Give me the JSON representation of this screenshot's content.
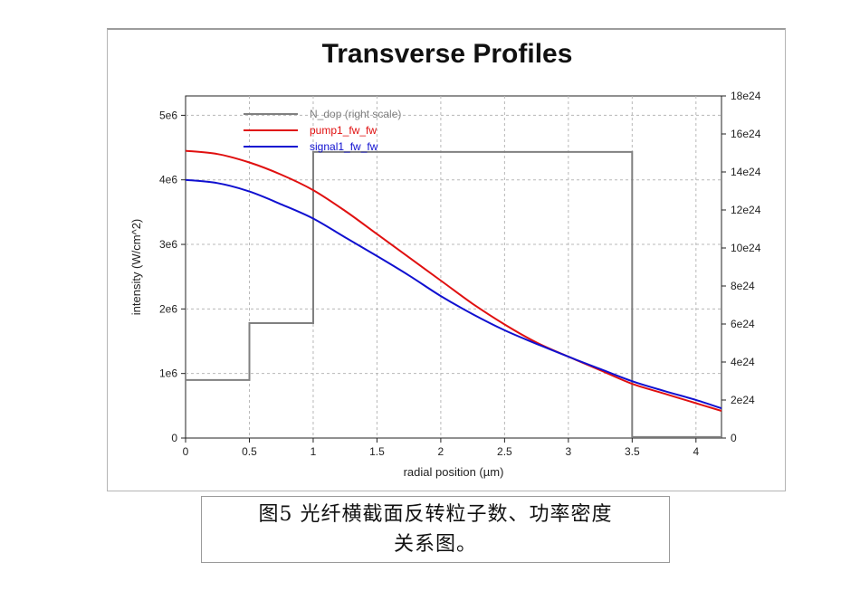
{
  "chart_data": {
    "type": "line",
    "title": "Transverse Profiles",
    "xlabel": "radial position (µm)",
    "ylabel": "intensity (W/cm^2)",
    "xlim": [
      0,
      4.2
    ],
    "ylim": [
      0,
      5300000
    ],
    "y2lim": [
      0,
      18000000000000000000000000
    ],
    "x_ticks": [
      0,
      0.5,
      1,
      1.5,
      2,
      2.5,
      3,
      3.5,
      4
    ],
    "x_tick_labels": [
      "0",
      "0.5",
      "1",
      "1.5",
      "2",
      "2.5",
      "3",
      "3.5",
      "4"
    ],
    "y_ticks": [
      0,
      1000000,
      2000000,
      3000000,
      4000000,
      5000000
    ],
    "y_tick_labels": [
      "0",
      "1e6",
      "2e6",
      "3e6",
      "4e6",
      "5e6"
    ],
    "y2_ticks": [
      0,
      2e+24,
      4e+24,
      6e+24,
      8e+24,
      1e+25,
      1.2e+25,
      1.4e+25,
      1.6e+25,
      1.8e+25
    ],
    "y2_tick_labels": [
      "0",
      "2e24",
      "4e24",
      "6e24",
      "8e24",
      "10e24",
      "12e24",
      "14e24",
      "16e24",
      "18e24"
    ],
    "grid": true,
    "legend_position": "top-left",
    "series": [
      {
        "name": "N_dop (right scale)",
        "axis": "right",
        "color": "#808080",
        "step": true,
        "x": [
          0,
          0.5,
          0.5,
          1.0,
          1.0,
          3.5,
          3.5,
          4.2
        ],
        "y": [
          3.05e+24,
          3.05e+24,
          6.05e+24,
          6.05e+24,
          1.505e+25,
          1.505e+25,
          5e+22,
          5e+22
        ]
      },
      {
        "name": "pump1_fw_fw",
        "axis": "left",
        "color": "#e01010",
        "x": [
          0,
          0.25,
          0.5,
          0.75,
          1.0,
          1.25,
          1.5,
          1.75,
          2.0,
          2.25,
          2.5,
          2.75,
          3.0,
          3.25,
          3.5,
          3.75,
          4.0,
          4.2
        ],
        "y": [
          4450000,
          4400000,
          4270000,
          4080000,
          3840000,
          3520000,
          3160000,
          2800000,
          2440000,
          2080000,
          1760000,
          1480000,
          1260000,
          1050000,
          840000,
          690000,
          540000,
          420000
        ]
      },
      {
        "name": "signal1_fw_fw",
        "axis": "left",
        "color": "#1010d0",
        "x": [
          0,
          0.25,
          0.5,
          0.75,
          1.0,
          1.25,
          1.5,
          1.75,
          2.0,
          2.25,
          2.5,
          2.75,
          3.0,
          3.25,
          3.5,
          3.75,
          4.0,
          4.2
        ],
        "y": [
          4000000,
          3950000,
          3820000,
          3620000,
          3400000,
          3110000,
          2820000,
          2520000,
          2200000,
          1920000,
          1670000,
          1460000,
          1260000,
          1070000,
          880000,
          730000,
          590000,
          460000
        ]
      }
    ]
  },
  "caption": {
    "line1": "图5 光纤横截面反转粒子数、功率密度",
    "line2": "关系图。"
  }
}
